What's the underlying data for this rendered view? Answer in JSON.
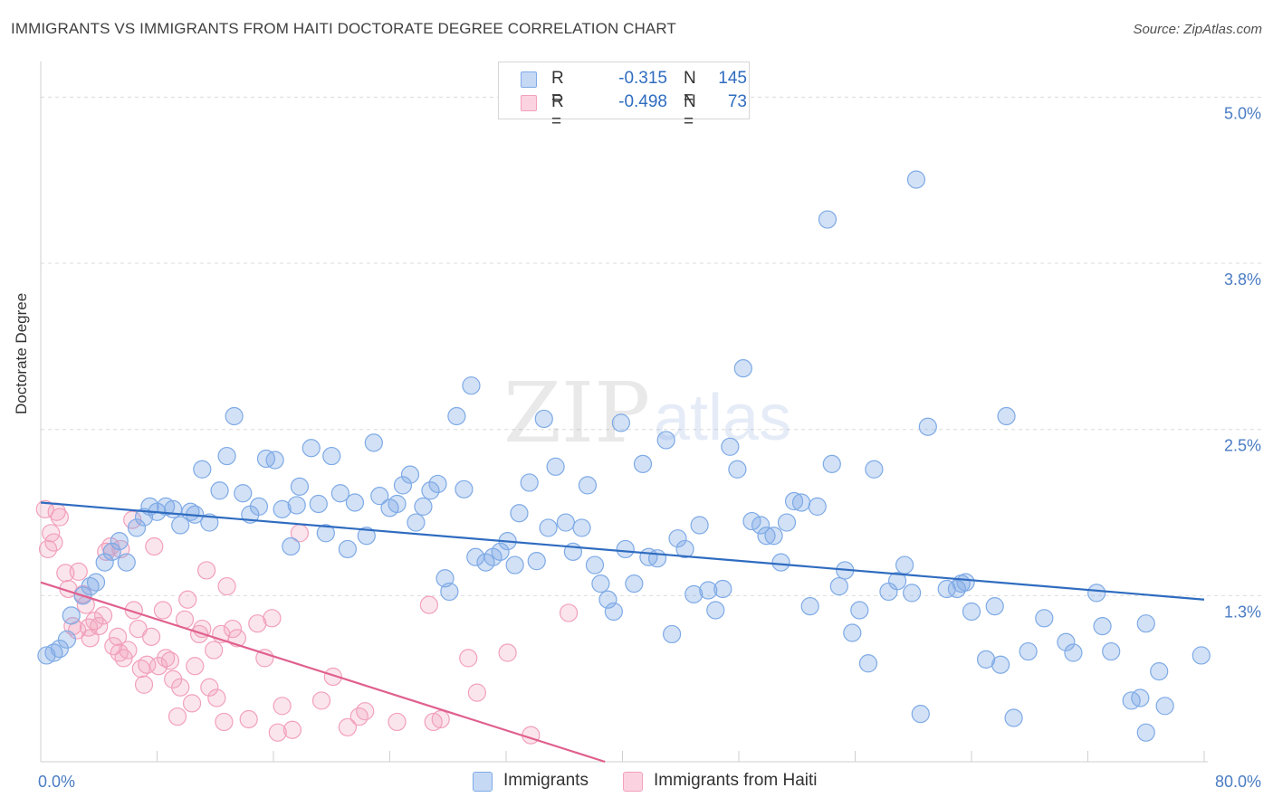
{
  "header": {
    "title": "IMMIGRANTS VS IMMIGRANTS FROM HAITI DOCTORATE DEGREE CORRELATION CHART",
    "source": "Source: ZipAtlas.com"
  },
  "watermark": {
    "zip": "ZIP",
    "atlas": "atlas"
  },
  "legend": {
    "r_label": "R =",
    "n_label": "N =",
    "series": [
      {
        "name": "Immigrants",
        "r": "-0.315",
        "n": "145",
        "color": "#7eaae6"
      },
      {
        "name": "Immigrants from Haiti",
        "r": "-0.498",
        "n": "73",
        "color": "#f2a0bb"
      }
    ]
  },
  "chart_data": {
    "type": "scatter",
    "title": "IMMIGRANTS VS IMMIGRANTS FROM HAITI DOCTORATE DEGREE CORRELATION CHART",
    "ylabel": "Doctorate Degree",
    "xlabel": "",
    "xlim": [
      0,
      80
    ],
    "ylim": [
      0,
      5.2
    ],
    "x_tick_labels": [
      "0.0%",
      "80.0%"
    ],
    "y_ticks": [
      {
        "value": 1.25,
        "label": "1.3%"
      },
      {
        "value": 2.5,
        "label": "2.5%"
      },
      {
        "value": 3.75,
        "label": "3.8%"
      },
      {
        "value": 5.0,
        "label": "5.0%"
      }
    ],
    "grid": "horizontal dashed",
    "legend_position": "top-center",
    "series": [
      {
        "name": "Immigrants",
        "color": "#7eaae6",
        "line_color": "#2f6cc0",
        "trend": {
          "x": [
            0,
            80
          ],
          "y": [
            1.95,
            1.22
          ]
        },
        "points": [
          [
            0.4,
            0.8
          ],
          [
            0.9,
            0.82
          ],
          [
            1.3,
            0.85
          ],
          [
            1.8,
            0.92
          ],
          [
            2.1,
            1.1
          ],
          [
            2.9,
            1.25
          ],
          [
            3.4,
            1.32
          ],
          [
            3.8,
            1.35
          ],
          [
            4.4,
            1.5
          ],
          [
            4.9,
            1.58
          ],
          [
            5.4,
            1.66
          ],
          [
            5.9,
            1.5
          ],
          [
            6.6,
            1.76
          ],
          [
            7.1,
            1.84
          ],
          [
            7.5,
            1.92
          ],
          [
            8.0,
            1.88
          ],
          [
            8.6,
            1.92
          ],
          [
            9.1,
            1.9
          ],
          [
            9.6,
            1.78
          ],
          [
            10.3,
            1.88
          ],
          [
            10.6,
            1.86
          ],
          [
            11.1,
            2.2
          ],
          [
            11.6,
            1.8
          ],
          [
            12.3,
            2.04
          ],
          [
            12.8,
            2.3
          ],
          [
            13.3,
            2.6
          ],
          [
            13.9,
            2.02
          ],
          [
            14.4,
            1.86
          ],
          [
            15.0,
            1.92
          ],
          [
            15.5,
            2.28
          ],
          [
            16.1,
            2.27
          ],
          [
            16.6,
            1.9
          ],
          [
            17.2,
            1.62
          ],
          [
            17.6,
            1.93
          ],
          [
            17.8,
            2.07
          ],
          [
            18.6,
            2.36
          ],
          [
            19.1,
            1.94
          ],
          [
            19.6,
            1.72
          ],
          [
            20.0,
            2.3
          ],
          [
            20.6,
            2.02
          ],
          [
            21.1,
            1.6
          ],
          [
            21.6,
            1.95
          ],
          [
            22.4,
            1.7
          ],
          [
            22.9,
            2.4
          ],
          [
            23.3,
            2.0
          ],
          [
            24.0,
            1.91
          ],
          [
            24.5,
            1.94
          ],
          [
            24.9,
            2.08
          ],
          [
            25.4,
            2.16
          ],
          [
            25.8,
            1.8
          ],
          [
            26.3,
            1.92
          ],
          [
            26.8,
            2.04
          ],
          [
            27.3,
            2.09
          ],
          [
            27.8,
            1.38
          ],
          [
            28.1,
            1.28
          ],
          [
            28.6,
            2.6
          ],
          [
            29.1,
            2.05
          ],
          [
            29.6,
            2.83
          ],
          [
            29.9,
            1.54
          ],
          [
            30.6,
            1.5
          ],
          [
            31.1,
            1.54
          ],
          [
            31.6,
            1.58
          ],
          [
            32.1,
            1.66
          ],
          [
            32.6,
            1.48
          ],
          [
            32.9,
            1.87
          ],
          [
            33.6,
            2.1
          ],
          [
            34.1,
            1.51
          ],
          [
            34.6,
            2.58
          ],
          [
            34.9,
            1.76
          ],
          [
            35.4,
            2.22
          ],
          [
            36.1,
            1.8
          ],
          [
            36.6,
            1.58
          ],
          [
            37.2,
            1.76
          ],
          [
            37.6,
            2.08
          ],
          [
            38.1,
            1.48
          ],
          [
            38.5,
            1.34
          ],
          [
            39.0,
            1.22
          ],
          [
            39.4,
            1.13
          ],
          [
            39.9,
            2.55
          ],
          [
            40.2,
            1.6
          ],
          [
            40.8,
            1.34
          ],
          [
            41.4,
            2.24
          ],
          [
            41.8,
            1.54
          ],
          [
            42.4,
            1.53
          ],
          [
            43.0,
            2.42
          ],
          [
            43.4,
            0.96
          ],
          [
            43.8,
            1.68
          ],
          [
            44.3,
            1.6
          ],
          [
            44.9,
            1.26
          ],
          [
            45.3,
            1.78
          ],
          [
            45.9,
            1.29
          ],
          [
            46.4,
            1.14
          ],
          [
            46.9,
            1.3
          ],
          [
            47.4,
            2.37
          ],
          [
            47.9,
            2.2
          ],
          [
            48.3,
            2.96
          ],
          [
            48.9,
            1.81
          ],
          [
            49.5,
            1.78
          ],
          [
            49.9,
            1.7
          ],
          [
            50.4,
            1.7
          ],
          [
            50.9,
            1.5
          ],
          [
            51.3,
            1.8
          ],
          [
            51.8,
            1.96
          ],
          [
            52.3,
            1.95
          ],
          [
            52.9,
            1.17
          ],
          [
            53.4,
            1.92
          ],
          [
            54.1,
            4.08
          ],
          [
            54.4,
            2.24
          ],
          [
            54.9,
            1.32
          ],
          [
            55.3,
            1.44
          ],
          [
            55.8,
            0.97
          ],
          [
            56.3,
            1.14
          ],
          [
            56.9,
            0.74
          ],
          [
            57.3,
            2.2
          ],
          [
            58.3,
            1.28
          ],
          [
            58.9,
            1.36
          ],
          [
            59.4,
            1.48
          ],
          [
            59.9,
            1.27
          ],
          [
            60.2,
            4.38
          ],
          [
            60.5,
            0.36
          ],
          [
            61.0,
            2.52
          ],
          [
            62.3,
            1.3
          ],
          [
            63.0,
            1.3
          ],
          [
            63.3,
            1.34
          ],
          [
            63.6,
            1.35
          ],
          [
            64.0,
            1.13
          ],
          [
            65.0,
            0.77
          ],
          [
            65.6,
            1.17
          ],
          [
            66.0,
            0.73
          ],
          [
            66.4,
            2.6
          ],
          [
            66.9,
            0.33
          ],
          [
            67.9,
            0.83
          ],
          [
            69.0,
            1.08
          ],
          [
            70.5,
            0.9
          ],
          [
            71.0,
            0.82
          ],
          [
            72.6,
            1.27
          ],
          [
            73.0,
            1.02
          ],
          [
            73.6,
            0.83
          ],
          [
            75.0,
            0.46
          ],
          [
            75.6,
            0.48
          ],
          [
            76.0,
            1.04
          ],
          [
            76.0,
            0.22
          ],
          [
            76.9,
            0.68
          ],
          [
            77.3,
            0.42
          ],
          [
            79.8,
            0.8
          ]
        ]
      },
      {
        "name": "Immigrants from Haiti",
        "color": "#f2a0bb",
        "line_color": "#e0608e",
        "trend": {
          "x": [
            0,
            38.8
          ],
          "y": [
            1.35,
            0.0
          ]
        },
        "points": [
          [
            0.3,
            1.9
          ],
          [
            0.5,
            1.6
          ],
          [
            0.7,
            1.72
          ],
          [
            0.9,
            1.65
          ],
          [
            1.1,
            1.88
          ],
          [
            1.3,
            1.84
          ],
          [
            1.7,
            1.42
          ],
          [
            1.9,
            1.3
          ],
          [
            2.2,
            1.02
          ],
          [
            2.5,
            0.99
          ],
          [
            2.6,
            1.43
          ],
          [
            2.9,
            1.26
          ],
          [
            3.1,
            1.18
          ],
          [
            3.3,
            1.01
          ],
          [
            3.4,
            0.93
          ],
          [
            3.7,
            1.06
          ],
          [
            4.0,
            1.02
          ],
          [
            4.3,
            1.1
          ],
          [
            4.5,
            1.58
          ],
          [
            4.8,
            1.62
          ],
          [
            5.0,
            0.87
          ],
          [
            5.3,
            0.94
          ],
          [
            5.4,
            0.82
          ],
          [
            5.5,
            1.6
          ],
          [
            5.7,
            0.78
          ],
          [
            6.0,
            0.84
          ],
          [
            6.3,
            1.82
          ],
          [
            6.4,
            1.14
          ],
          [
            6.7,
            1.0
          ],
          [
            6.9,
            0.7
          ],
          [
            7.1,
            0.58
          ],
          [
            7.3,
            0.73
          ],
          [
            7.6,
            0.94
          ],
          [
            7.8,
            1.62
          ],
          [
            8.1,
            0.72
          ],
          [
            8.4,
            1.14
          ],
          [
            8.6,
            0.78
          ],
          [
            8.9,
            0.76
          ],
          [
            9.1,
            0.62
          ],
          [
            9.4,
            0.34
          ],
          [
            9.6,
            0.56
          ],
          [
            9.9,
            1.07
          ],
          [
            10.1,
            1.22
          ],
          [
            10.4,
            0.44
          ],
          [
            10.6,
            0.72
          ],
          [
            10.9,
            0.96
          ],
          [
            11.1,
            1.0
          ],
          [
            11.4,
            1.44
          ],
          [
            11.6,
            0.56
          ],
          [
            11.9,
            0.84
          ],
          [
            12.1,
            0.48
          ],
          [
            12.4,
            0.96
          ],
          [
            12.6,
            0.3
          ],
          [
            12.8,
            1.32
          ],
          [
            13.2,
            1.0
          ],
          [
            13.5,
            0.93
          ],
          [
            14.3,
            0.32
          ],
          [
            14.9,
            1.04
          ],
          [
            15.4,
            0.78
          ],
          [
            15.9,
            1.08
          ],
          [
            16.3,
            0.22
          ],
          [
            16.6,
            0.42
          ],
          [
            17.3,
            0.24
          ],
          [
            17.8,
            1.72
          ],
          [
            19.3,
            0.46
          ],
          [
            20.1,
            0.64
          ],
          [
            21.1,
            0.26
          ],
          [
            21.9,
            0.34
          ],
          [
            22.3,
            0.38
          ],
          [
            24.5,
            0.3
          ],
          [
            26.7,
            1.18
          ],
          [
            27.0,
            0.3
          ],
          [
            27.5,
            0.32
          ],
          [
            29.4,
            0.78
          ],
          [
            30.0,
            0.52
          ],
          [
            32.1,
            0.82
          ],
          [
            33.7,
            0.2
          ],
          [
            36.3,
            1.12
          ]
        ]
      }
    ]
  }
}
